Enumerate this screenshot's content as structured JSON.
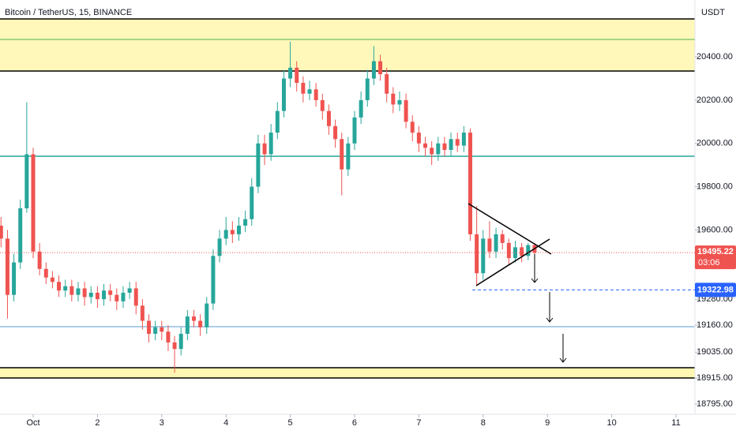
{
  "chart_data": {
    "type": "candlestick",
    "title": "Bitcoin / TetherUS, 15, BINANCE",
    "currency": "USDT",
    "colors": {
      "up": "#26a69a",
      "down": "#ef5350"
    },
    "xlim": [
      0.484,
      11.295
    ],
    "xticks": [
      {
        "value": 1,
        "label": "Oct"
      },
      2,
      3,
      4,
      5,
      6,
      7,
      8,
      9,
      10,
      11
    ],
    "ylim": [
      18748,
      20663
    ],
    "yticks": [
      {
        "value": 20400,
        "label": "20400.00"
      },
      {
        "value": 20200,
        "label": "20200.00"
      },
      {
        "value": 20000,
        "label": "20000.00"
      },
      {
        "value": 19800,
        "label": "19800.00"
      },
      {
        "value": 19600,
        "label": "19600.00"
      },
      {
        "value": 19280,
        "label": "19280.00"
      },
      {
        "value": 19160,
        "label": "19160.00"
      },
      {
        "value": 19035,
        "label": "19035.00"
      },
      {
        "value": 18915,
        "label": "18915.00"
      },
      {
        "value": 18795,
        "label": "18795.00"
      }
    ],
    "last_price": 19495.22,
    "countdown": "03:06",
    "level_price": 19322.98,
    "x": [
      0.5,
      0.6,
      0.7,
      0.8,
      0.9,
      1.0,
      1.1,
      1.2,
      1.3,
      1.4,
      1.5,
      1.6,
      1.7,
      1.8,
      1.9,
      2.0,
      2.1,
      2.2,
      2.3,
      2.4,
      2.5,
      2.6,
      2.7,
      2.8,
      2.9,
      3.0,
      3.1,
      3.2,
      3.3,
      3.4,
      3.5,
      3.6,
      3.7,
      3.8,
      3.9,
      4.0,
      4.1,
      4.2,
      4.3,
      4.4,
      4.5,
      4.6,
      4.7,
      4.8,
      4.9,
      5.0,
      5.1,
      5.2,
      5.3,
      5.4,
      5.5,
      5.6,
      5.7,
      5.8,
      5.9,
      6.0,
      6.1,
      6.2,
      6.3,
      6.4,
      6.5,
      6.6,
      6.7,
      6.8,
      6.9,
      7.0,
      7.1,
      7.2,
      7.3,
      7.4,
      7.5,
      7.6,
      7.7,
      7.8,
      7.9,
      8.0,
      8.1,
      8.2,
      8.3,
      8.4,
      8.5,
      8.6,
      8.7,
      8.8
    ],
    "open": [
      19620,
      19560,
      19300,
      19450,
      19700,
      19950,
      19500,
      19420,
      19380,
      19360,
      19320,
      19340,
      19300,
      19330,
      19290,
      19310,
      19280,
      19320,
      19300,
      19270,
      19310,
      19330,
      19250,
      19180,
      19120,
      19150,
      19130,
      19080,
      19050,
      19120,
      19200,
      19180,
      19150,
      19260,
      19480,
      19560,
      19600,
      19580,
      19620,
      19650,
      19800,
      20000,
      19950,
      20050,
      20150,
      20300,
      20350,
      20280,
      20230,
      20250,
      20200,
      20150,
      20080,
      20020,
      19880,
      20000,
      20120,
      20200,
      20300,
      20380,
      20320,
      20230,
      20180,
      20200,
      20100,
      20050,
      20000,
      19980,
      19950,
      20000,
      19970,
      20020,
      19990,
      20050,
      19580,
      19400,
      19560,
      19500,
      19580,
      19540,
      19470,
      19520,
      19480,
      19530
    ],
    "high": [
      19660,
      19600,
      19490,
      19740,
      20190,
      19980,
      19540,
      19450,
      19410,
      19390,
      19370,
      19370,
      19360,
      19360,
      19340,
      19340,
      19350,
      19350,
      19330,
      19340,
      19360,
      19360,
      19280,
      19210,
      19180,
      19180,
      19160,
      19110,
      19150,
      19230,
      19230,
      19210,
      19290,
      19510,
      19600,
      19660,
      19640,
      19660,
      19690,
      19840,
      20040,
      20040,
      20090,
      20190,
      20340,
      20470,
      20380,
      20310,
      20290,
      20280,
      20230,
      20180,
      20110,
      20050,
      20030,
      20150,
      20240,
      20340,
      20450,
      20410,
      20350,
      20260,
      20240,
      20230,
      20130,
      20080,
      20030,
      20010,
      20030,
      20030,
      20050,
      20050,
      20080,
      20070,
      19710,
      19600,
      19640,
      19610,
      19600,
      19560,
      19550,
      19540,
      19540,
      19540
    ],
    "low": [
      19520,
      19190,
      19270,
      19420,
      19680,
      19470,
      19390,
      19350,
      19330,
      19290,
      19290,
      19270,
      19270,
      19250,
      19260,
      19240,
      19250,
      19270,
      19230,
      19240,
      19280,
      19210,
      19140,
      19080,
      19090,
      19090,
      19040,
      18940,
      19020,
      19090,
      19150,
      19110,
      19120,
      19230,
      19450,
      19530,
      19540,
      19550,
      19590,
      19620,
      19770,
      19900,
      19920,
      20020,
      20120,
      20260,
      20240,
      20190,
      20200,
      20170,
      20110,
      20040,
      19980,
      19760,
      19850,
      19970,
      20090,
      20170,
      20270,
      20290,
      20190,
      20140,
      20150,
      20070,
      20010,
      19960,
      19940,
      19900,
      19920,
      19940,
      19940,
      19960,
      19960,
      19550,
      19340,
      19370,
      19470,
      19470,
      19510,
      19440,
      19450,
      19450,
      19460,
      19470
    ],
    "close": [
      19560,
      19300,
      19450,
      19700,
      19950,
      19500,
      19420,
      19380,
      19360,
      19320,
      19340,
      19300,
      19330,
      19290,
      19310,
      19280,
      19320,
      19300,
      19270,
      19310,
      19330,
      19250,
      19180,
      19120,
      19150,
      19130,
      19080,
      19050,
      19120,
      19200,
      19180,
      19150,
      19260,
      19480,
      19560,
      19600,
      19580,
      19620,
      19650,
      19800,
      20000,
      19950,
      20050,
      20150,
      20300,
      20350,
      20280,
      20230,
      20250,
      20200,
      20150,
      20080,
      20020,
      19880,
      20000,
      20120,
      20200,
      20300,
      20380,
      20320,
      20230,
      20180,
      20200,
      20100,
      20050,
      20000,
      19980,
      19950,
      20000,
      19970,
      20020,
      19990,
      20050,
      19580,
      19400,
      19560,
      19500,
      19580,
      19540,
      19470,
      19520,
      19480,
      19530,
      19495
    ]
  }
}
